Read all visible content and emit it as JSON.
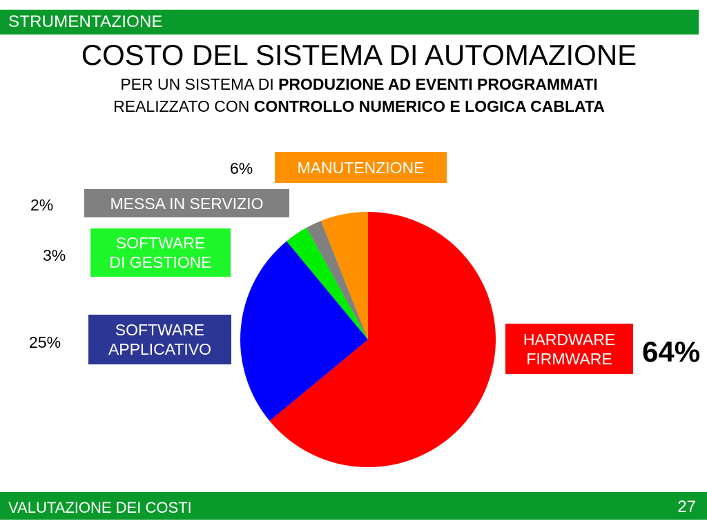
{
  "header": {
    "section": "STRUMENTAZIONE"
  },
  "title": {
    "main": "COSTO DEL SISTEMA DI AUTOMAZIONE",
    "line1_prefix": "PER UN SISTEMA DI ",
    "line1_bold": "PRODUZIONE AD EVENTI PROGRAMMATI",
    "line2_prefix": "REALIZZATO CON ",
    "line2_bold": "CONTROLLO NUMERICO E LOGICA CABLATA"
  },
  "chart_data": {
    "type": "pie",
    "title": "COSTO DEL SISTEMA DI AUTOMAZIONE",
    "slices": [
      {
        "label": "HARDWARE FIRMWARE",
        "value": 64,
        "pct_label": "64%",
        "color": "#ff0000"
      },
      {
        "label": "SOFTWARE APPLICATIVO",
        "value": 25,
        "pct_label": "25%",
        "color": "#0000ff"
      },
      {
        "label": "SOFTWARE DI GESTIONE",
        "value": 3,
        "pct_label": "3%",
        "color": "#00ee00"
      },
      {
        "label": "MESSA IN SERVIZIO",
        "value": 2,
        "pct_label": "2%",
        "color": "#808080"
      },
      {
        "label": "MANUTENZIONE",
        "value": 6,
        "pct_label": "6%",
        "color": "#ff9000"
      }
    ]
  },
  "labels": {
    "manutenzione": "MANUTENZIONE",
    "messa": "MESSA IN SERVIZIO",
    "sw_gestione_1": "SOFTWARE",
    "sw_gestione_2": "DI GESTIONE",
    "sw_applicativo_1": "SOFTWARE",
    "sw_applicativo_2": "APPLICATIVO",
    "hardware_1": "HARDWARE",
    "hardware_2": "FIRMWARE"
  },
  "footer": {
    "left": "VALUTAZIONE DEI COSTI",
    "page": "27"
  }
}
